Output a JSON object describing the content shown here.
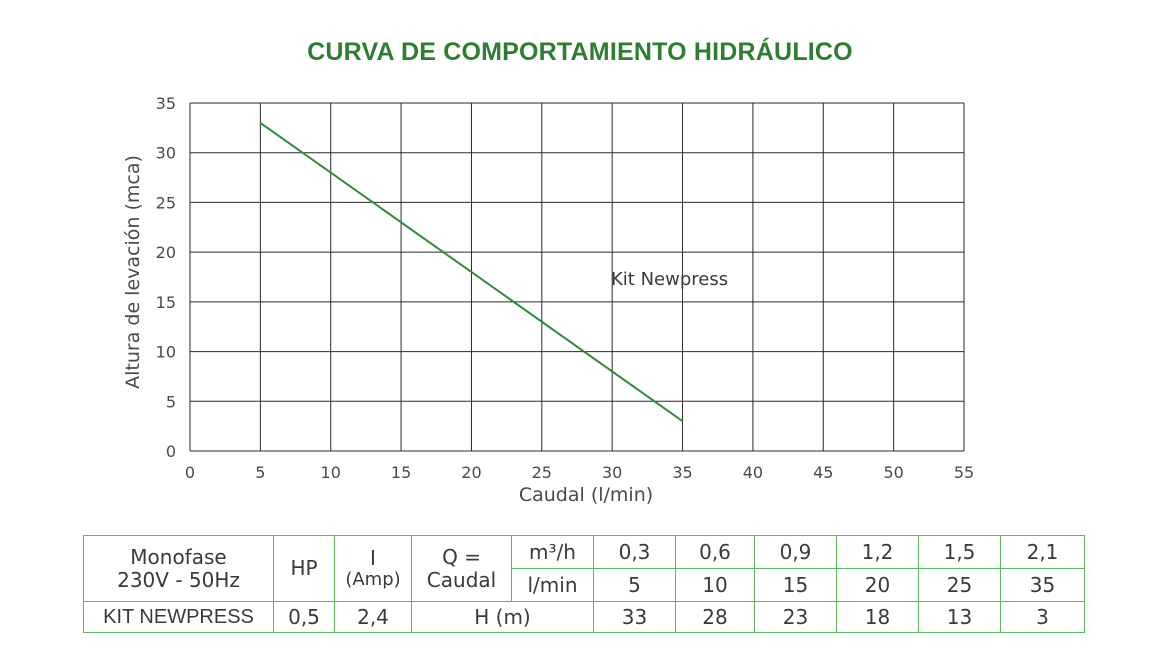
{
  "chart_data": {
    "type": "line",
    "title": "CURVA DE COMPORTAMIENTO HIDRÁULICO",
    "xlabel": "Caudal (l/min)",
    "ylabel": "Altura de levación (mca)",
    "xlim": [
      0,
      55
    ],
    "ylim": [
      0,
      35
    ],
    "xticks": [
      0,
      5,
      10,
      15,
      20,
      25,
      30,
      35,
      40,
      45,
      50,
      55
    ],
    "yticks": [
      0,
      5,
      10,
      15,
      20,
      25,
      30,
      35
    ],
    "grid": true,
    "annotations": [
      {
        "text": "Kit Newpress",
        "x": 30,
        "y": 17.5
      }
    ],
    "series": [
      {
        "name": "Kit Newpress",
        "color": "#2e8b3a",
        "x": [
          5,
          35
        ],
        "y": [
          33,
          3
        ]
      }
    ]
  },
  "table": {
    "header_model": [
      "Monofase",
      "230V - 50Hz"
    ],
    "header_hp": "HP",
    "header_i": [
      "I",
      "(Amp)"
    ],
    "header_q": [
      "Q =",
      "Caudal"
    ],
    "unit_m3h": "m³/h",
    "unit_lmin": "l/min",
    "m3h_values": [
      "0,3",
      "0,6",
      "0,9",
      "1,2",
      "1,5",
      "2,1"
    ],
    "lmin_values": [
      "5",
      "10",
      "15",
      "20",
      "25",
      "35"
    ],
    "row_name": "KIT NEWPRESS",
    "row_hp": "0,5",
    "row_i": "2,4",
    "row_h_label": "H (m)",
    "h_values": [
      "33",
      "28",
      "23",
      "18",
      "13",
      "3"
    ]
  },
  "colors": {
    "title": "#2e7d32",
    "table_border": "#5cb85c",
    "grid": "#2a2a2a"
  }
}
